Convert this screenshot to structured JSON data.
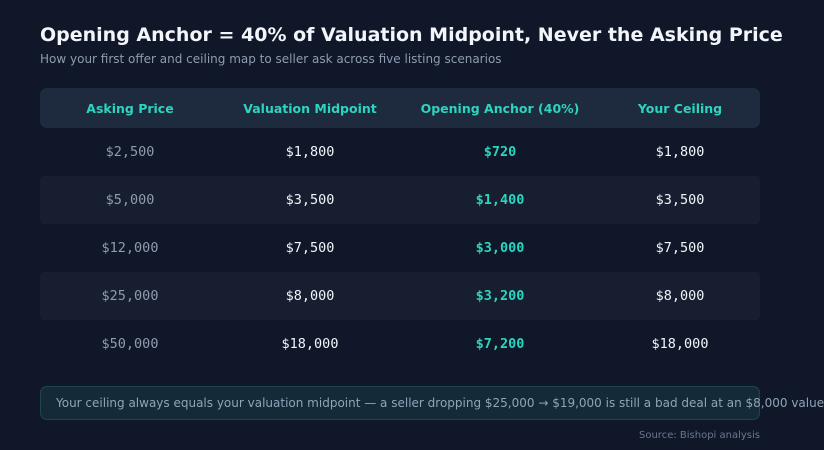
{
  "header": {
    "title": "Opening Anchor = 40% of Valuation Midpoint, Never the Asking Price",
    "subtitle": "How your first offer and ceiling map to seller ask across five listing scenarios"
  },
  "chart_data": {
    "type": "table",
    "columns": [
      "Asking Price",
      "Valuation Midpoint",
      "Opening Anchor (40%)",
      "Your Ceiling"
    ],
    "rows": [
      [
        "$2,500",
        "$1,800",
        "$720",
        "$1,800"
      ],
      [
        "$5,000",
        "$3,500",
        "$1,400",
        "$3,500"
      ],
      [
        "$12,000",
        "$7,500",
        "$3,000",
        "$7,500"
      ],
      [
        "$25,000",
        "$8,000",
        "$3,200",
        "$8,000"
      ],
      [
        "$50,000",
        "$18,000",
        "$7,200",
        "$18,000"
      ]
    ]
  },
  "callout": {
    "text": "Your ceiling always equals your valuation midpoint — a seller dropping $25,000 → $19,000 is still a bad deal at an $8,000 value"
  },
  "footer": {
    "source": "Source: Bishopi analysis"
  },
  "colors": {
    "background": "#0f1729",
    "accent": "#2dd4bf",
    "header_row": "#1e2a3d",
    "alt_row": "#161e2f"
  }
}
